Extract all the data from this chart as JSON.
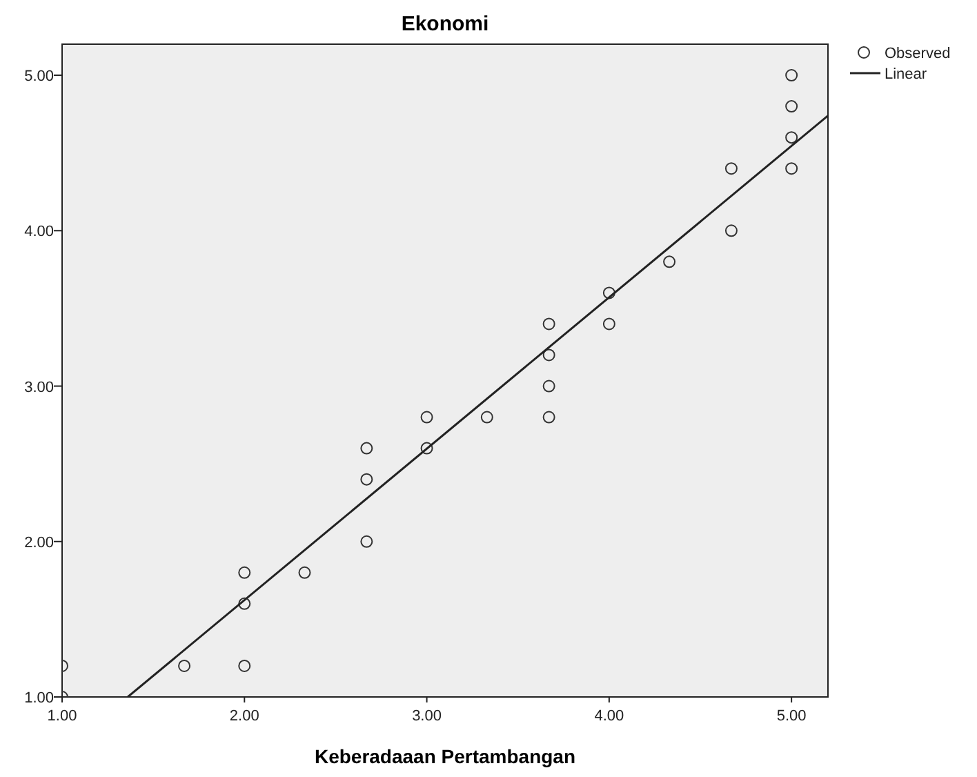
{
  "chart_data": {
    "type": "scatter",
    "title": "Ekonomi",
    "xlabel": "Keberadaaan Pertambangan",
    "xlim": [
      1,
      5.2
    ],
    "ylim": [
      1,
      5.2
    ],
    "xticks": [
      {
        "value": 1,
        "label": "1.00"
      },
      {
        "value": 2,
        "label": "2.00"
      },
      {
        "value": 3,
        "label": "3.00"
      },
      {
        "value": 4,
        "label": "4.00"
      },
      {
        "value": 5,
        "label": "5.00"
      }
    ],
    "yticks": [
      {
        "value": 1,
        "label": "1.00"
      },
      {
        "value": 2,
        "label": "2.00"
      },
      {
        "value": 3,
        "label": "3.00"
      },
      {
        "value": 4,
        "label": "4.00"
      },
      {
        "value": 5,
        "label": "5.00"
      }
    ],
    "grid": false,
    "legend": "top right",
    "series": [
      {
        "name": "Observed",
        "marker": "circle",
        "color": "#333333",
        "x": [
          1,
          1,
          1.67,
          2,
          2,
          2,
          2.33,
          2.67,
          2.67,
          2.67,
          3,
          3,
          3.33,
          3.67,
          3.67,
          3.67,
          3.67,
          4,
          4,
          4.33,
          4.67,
          4.67,
          5,
          5,
          5,
          5
        ],
        "values": [
          1.2,
          1.0,
          1.2,
          1.8,
          1.6,
          1.2,
          1.8,
          2.6,
          2.4,
          2.0,
          2.8,
          2.6,
          2.8,
          3.4,
          3.2,
          3.0,
          2.8,
          3.6,
          3.4,
          3.8,
          4.4,
          4.0,
          5.0,
          4.8,
          4.6,
          4.4
        ]
      },
      {
        "name": "Linear",
        "type": "line",
        "color": "#222222",
        "x": [
          1.36,
          5.2
        ],
        "values": [
          1.0,
          4.74
        ]
      }
    ]
  }
}
